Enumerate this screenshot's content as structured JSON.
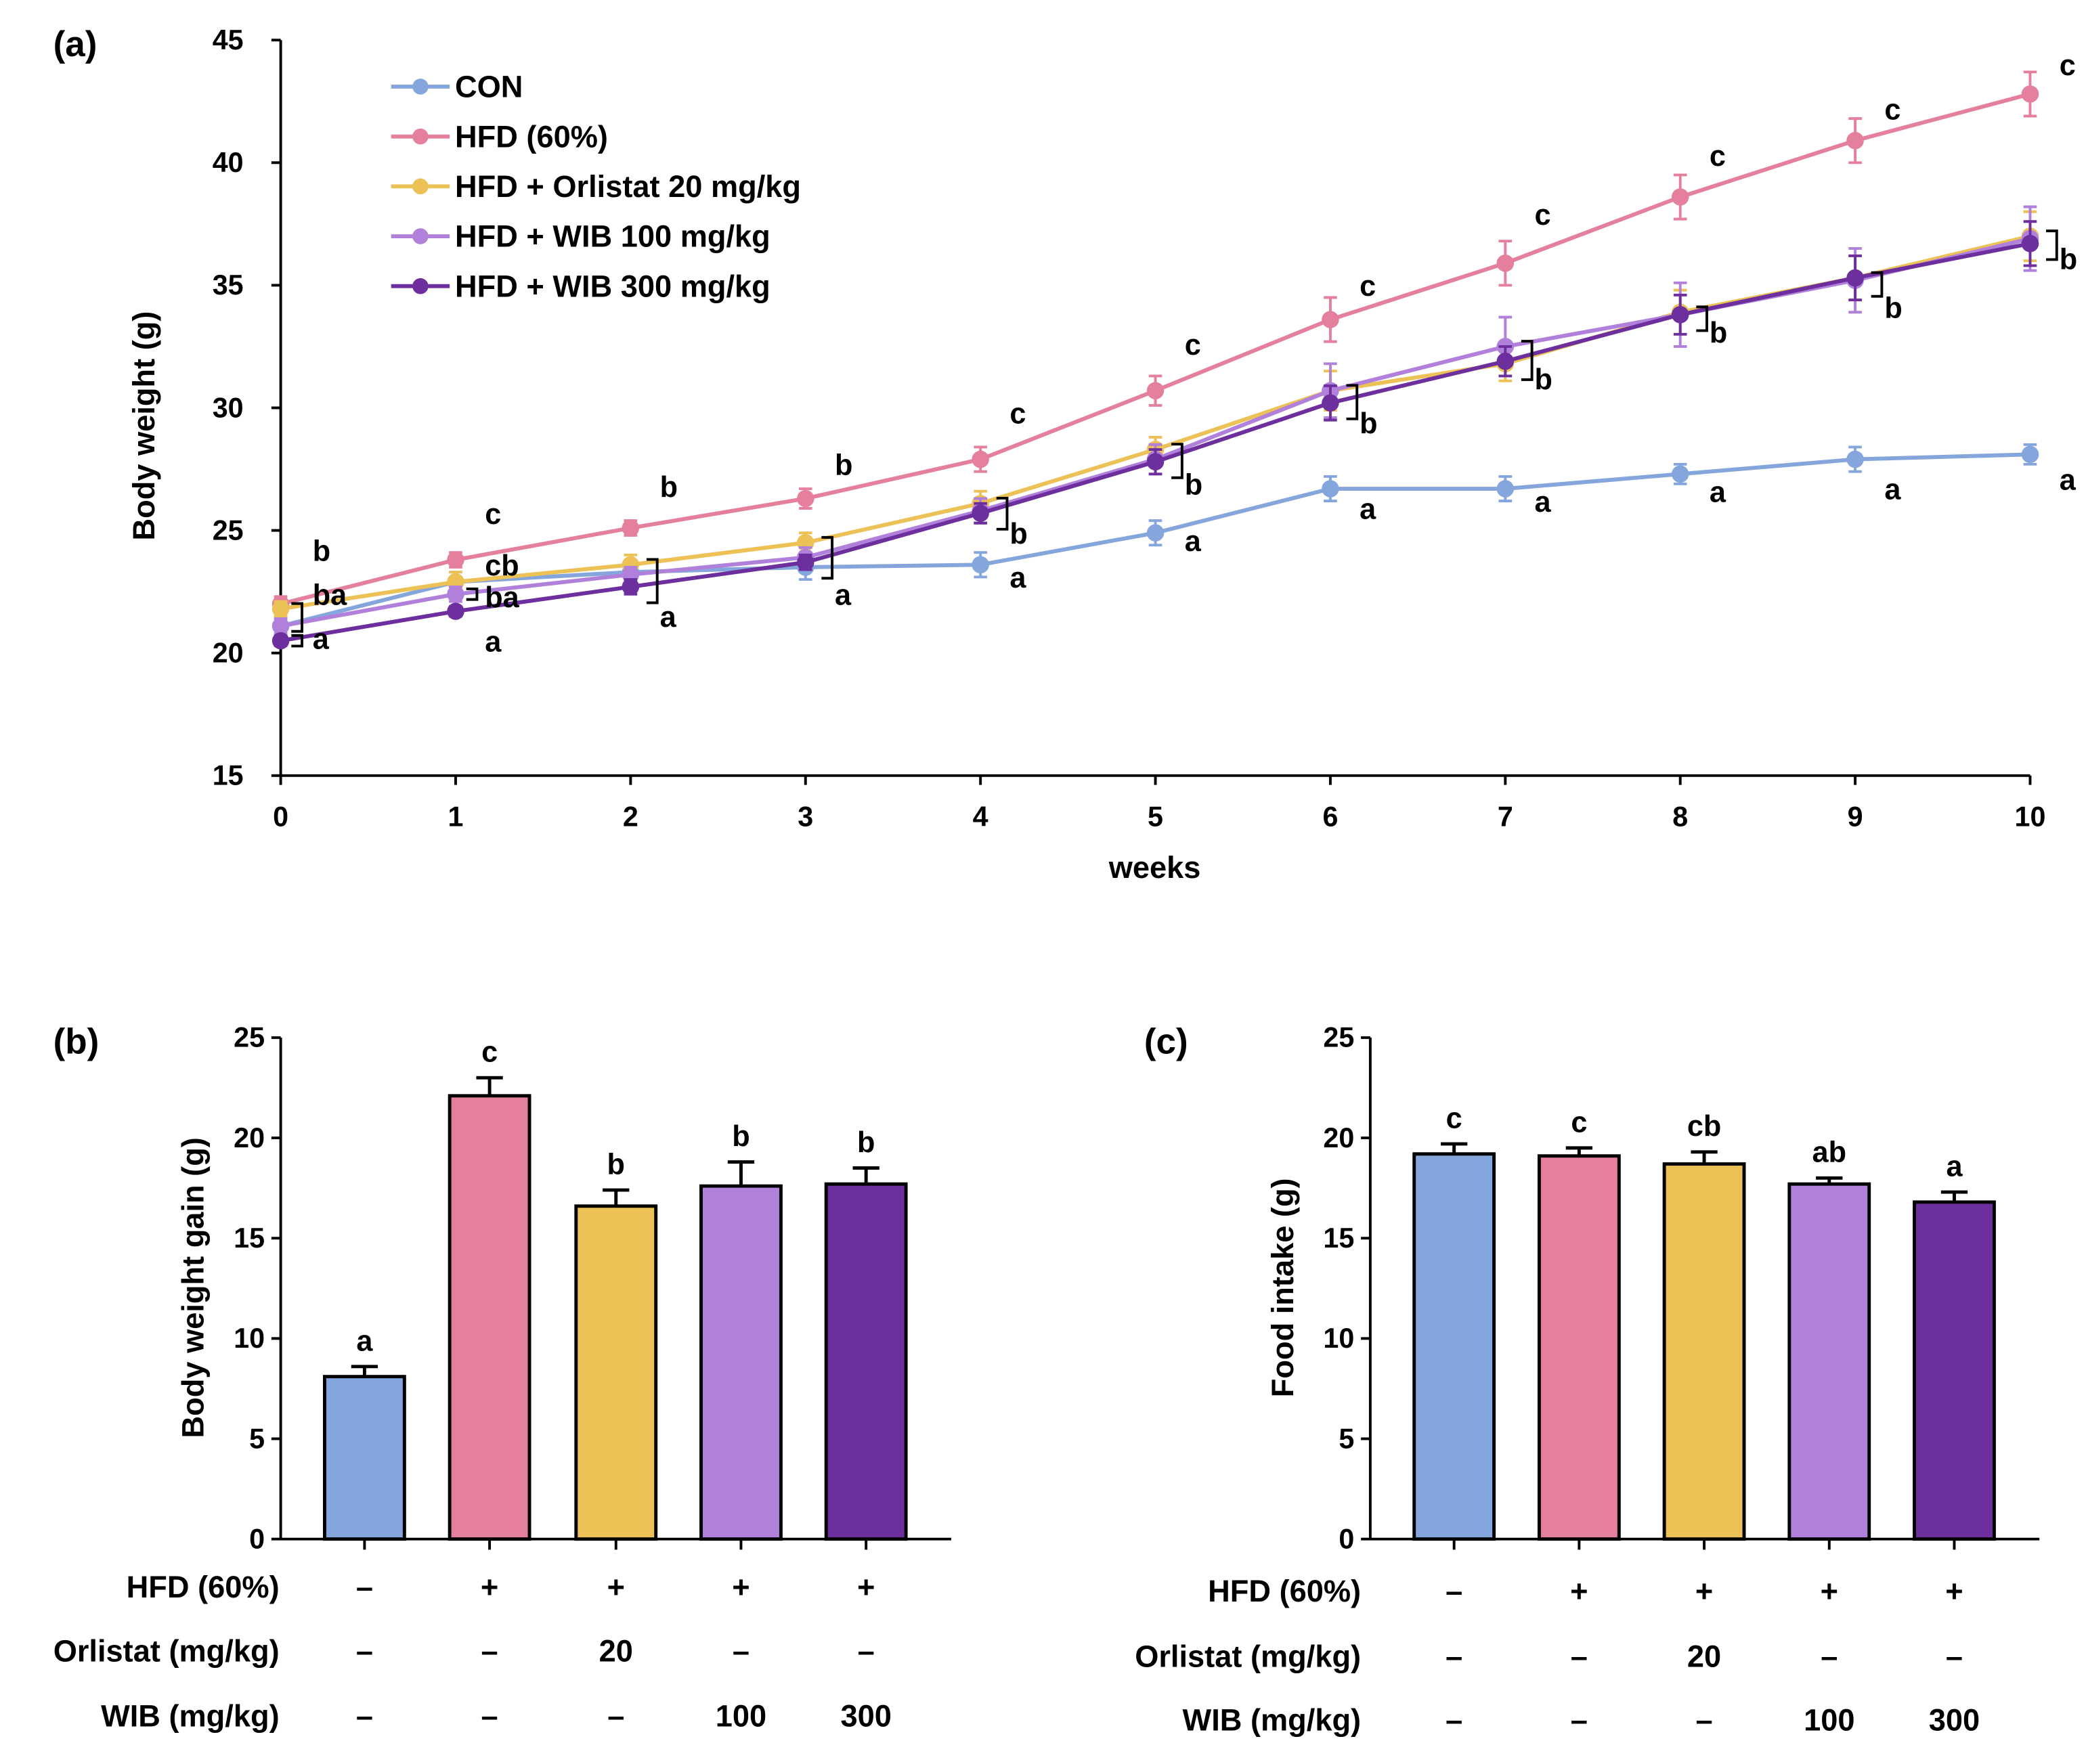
{
  "colors": {
    "CON": "#85a6dc",
    "HFD": "#e4809b",
    "ORL": "#ecc155",
    "WIB100": "#b080db",
    "WIB300": "#6e2f9e"
  },
  "chart_data": [
    {
      "panel": "(a)",
      "type": "line",
      "xlabel": "weeks",
      "ylabel": "Body weight (g)",
      "ylim": [
        15,
        45
      ],
      "yticks": [
        "15",
        "20",
        "25",
        "30",
        "35",
        "40",
        "45"
      ],
      "x": [
        0,
        1,
        2,
        3,
        4,
        5,
        6,
        7,
        8,
        9,
        10
      ],
      "xticks": [
        "0",
        "1",
        "2",
        "3",
        "4",
        "5",
        "6",
        "7",
        "8",
        "9",
        "10"
      ],
      "legend": "top-left",
      "series": [
        {
          "key": "CON",
          "name": "CON",
          "values": [
            21.1,
            22.9,
            23.3,
            23.5,
            23.6,
            24.9,
            26.7,
            26.7,
            27.3,
            27.9,
            28.1
          ],
          "err": [
            0.4,
            0.4,
            0.4,
            0.5,
            0.5,
            0.5,
            0.5,
            0.5,
            0.4,
            0.5,
            0.4
          ]
        },
        {
          "key": "HFD",
          "name": "HFD (60%)",
          "values": [
            22.0,
            23.8,
            25.1,
            26.3,
            27.9,
            30.7,
            33.6,
            35.9,
            38.6,
            40.9,
            42.8
          ],
          "err": [
            0.3,
            0.3,
            0.3,
            0.4,
            0.5,
            0.6,
            0.9,
            0.9,
            0.9,
            0.9,
            0.9
          ]
        },
        {
          "key": "ORL",
          "name": "HFD + Orlistat 20 mg/kg",
          "values": [
            21.8,
            22.9,
            23.6,
            24.5,
            26.1,
            28.3,
            30.7,
            31.8,
            33.9,
            35.3,
            37.0
          ],
          "err": [
            0.3,
            0.4,
            0.4,
            0.4,
            0.5,
            0.5,
            0.8,
            0.7,
            0.9,
            0.9,
            1.0
          ]
        },
        {
          "key": "WIB100",
          "name": "HFD + WIB 100 mg/kg",
          "values": [
            21.1,
            22.4,
            23.2,
            23.9,
            25.8,
            27.9,
            30.7,
            32.5,
            33.8,
            35.2,
            36.9
          ],
          "err": [
            0.3,
            0.3,
            0.3,
            0.4,
            0.5,
            0.6,
            1.1,
            1.2,
            1.3,
            1.3,
            1.3
          ]
        },
        {
          "key": "WIB300",
          "name": "HFD + WIB 300 mg/kg",
          "values": [
            20.5,
            21.7,
            22.7,
            23.7,
            25.7,
            27.8,
            30.2,
            31.9,
            33.8,
            35.3,
            36.7
          ],
          "err": [
            0.2,
            0.2,
            0.3,
            0.3,
            0.4,
            0.5,
            0.7,
            0.6,
            0.8,
            0.9,
            0.9
          ]
        }
      ],
      "annotations": [
        {
          "week": 0,
          "y": 24.2,
          "text": "b"
        },
        {
          "week": 0,
          "y": 22.4,
          "text": "ba"
        },
        {
          "week": 0,
          "y": 20.6,
          "text": "a"
        },
        {
          "week": 1,
          "y": 25.7,
          "text": "c"
        },
        {
          "week": 1,
          "y": 23.6,
          "text": "cb"
        },
        {
          "week": 1,
          "y": 22.3,
          "text": "ba"
        },
        {
          "week": 1,
          "y": 20.5,
          "text": "a"
        },
        {
          "week": 2,
          "y": 26.8,
          "text": "b"
        },
        {
          "week": 2,
          "y": 21.5,
          "text": "a"
        },
        {
          "week": 3,
          "y": 27.7,
          "text": "b"
        },
        {
          "week": 3,
          "y": 22.4,
          "text": "a"
        },
        {
          "week": 4,
          "y": 29.8,
          "text": "c"
        },
        {
          "week": 4,
          "y": 24.9,
          "text": "b"
        },
        {
          "week": 4,
          "y": 23.1,
          "text": "a"
        },
        {
          "week": 5,
          "y": 32.6,
          "text": "c"
        },
        {
          "week": 5,
          "y": 26.9,
          "text": "b"
        },
        {
          "week": 5,
          "y": 24.6,
          "text": "a"
        },
        {
          "week": 6,
          "y": 35.0,
          "text": "c"
        },
        {
          "week": 6,
          "y": 29.4,
          "text": "b"
        },
        {
          "week": 6,
          "y": 25.9,
          "text": "a"
        },
        {
          "week": 7,
          "y": 37.9,
          "text": "c"
        },
        {
          "week": 7,
          "y": 31.2,
          "text": "b"
        },
        {
          "week": 7,
          "y": 26.2,
          "text": "a"
        },
        {
          "week": 8,
          "y": 40.3,
          "text": "c"
        },
        {
          "week": 8,
          "y": 33.1,
          "text": "b"
        },
        {
          "week": 8,
          "y": 26.6,
          "text": "a"
        },
        {
          "week": 9,
          "y": 42.2,
          "text": "c"
        },
        {
          "week": 9,
          "y": 34.1,
          "text": "b"
        },
        {
          "week": 9,
          "y": 26.7,
          "text": "a"
        },
        {
          "week": 10,
          "y": 44.0,
          "text": "c"
        },
        {
          "week": 10,
          "y": 36.1,
          "text": "b"
        },
        {
          "week": 10,
          "y": 27.1,
          "text": "a"
        }
      ]
    },
    {
      "panel": "(b)",
      "type": "bar",
      "ylabel": "Body weight gain (g)",
      "ylim": [
        0,
        25
      ],
      "yticks": [
        "0",
        "5",
        "10",
        "15",
        "20",
        "25"
      ],
      "values": [
        8.1,
        22.1,
        16.6,
        17.6,
        17.7
      ],
      "err": [
        0.5,
        0.9,
        0.8,
        1.2,
        0.8
      ],
      "letters": [
        "a",
        "c",
        "b",
        "b",
        "b"
      ],
      "colorKeys": [
        "CON",
        "HFD",
        "ORL",
        "WIB100",
        "WIB300"
      ],
      "rows": [
        {
          "label": "HFD (60%)",
          "cells": [
            "–",
            "+",
            "+",
            "+",
            "+"
          ]
        },
        {
          "label": "Orlistat (mg/kg)",
          "cells": [
            "–",
            "–",
            "20",
            "–",
            "–"
          ]
        },
        {
          "label": "WIB (mg/kg)",
          "cells": [
            "–",
            "–",
            "–",
            "100",
            "300"
          ]
        }
      ]
    },
    {
      "panel": "(c)",
      "type": "bar",
      "ylabel": "Food intake (g)",
      "ylim": [
        0,
        25
      ],
      "yticks": [
        "0",
        "5",
        "10",
        "15",
        "20",
        "25"
      ],
      "values": [
        19.2,
        19.1,
        18.7,
        17.7,
        16.8
      ],
      "err": [
        0.5,
        0.4,
        0.6,
        0.3,
        0.5
      ],
      "letters": [
        "c",
        "c",
        "cb",
        "ab",
        "a"
      ],
      "colorKeys": [
        "CON",
        "HFD",
        "ORL",
        "WIB100",
        "WIB300"
      ],
      "rows": [
        {
          "label": "HFD (60%)",
          "cells": [
            "–",
            "+",
            "+",
            "+",
            "+"
          ]
        },
        {
          "label": "Orlistat (mg/kg)",
          "cells": [
            "–",
            "–",
            "20",
            "–",
            "–"
          ]
        },
        {
          "label": "WIB (mg/kg)",
          "cells": [
            "–",
            "–",
            "–",
            "100",
            "300"
          ]
        }
      ]
    }
  ]
}
